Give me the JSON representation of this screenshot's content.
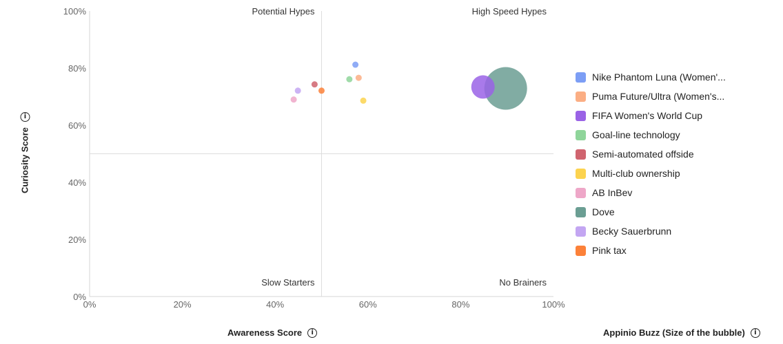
{
  "chart_data": {
    "type": "scatter",
    "xlabel": "Awareness Score",
    "ylabel": "Curiosity Score",
    "size_label": "Appinio Buzz (Size of the bubble)",
    "xlim": [
      0,
      100
    ],
    "ylim": [
      0,
      100
    ],
    "x_ticks": [
      "0%",
      "20%",
      "40%",
      "60%",
      "80%",
      "100%"
    ],
    "y_ticks": [
      "0%",
      "20%",
      "40%",
      "60%",
      "80%",
      "100%"
    ],
    "quadrant_divider": {
      "x": 50,
      "y": 50
    },
    "quadrants": {
      "top_left": "Potential Hypes",
      "top_right": "High Speed Hypes",
      "bottom_left": "Slow Starters",
      "bottom_right": "No Brainers"
    },
    "legend_position": "right",
    "series": [
      {
        "name": "Nike Phantom Luna (Women'...",
        "color": "#7c9ef5",
        "x": 57.3,
        "y": 81.2,
        "size": 1
      },
      {
        "name": "Puma Future/Ultra (Women's...",
        "color": "#fbae84",
        "x": 58.0,
        "y": 76.6,
        "size": 1
      },
      {
        "name": "FIFA Women's World Cup",
        "color": "#9a63e6",
        "x": 84.8,
        "y": 73.4,
        "size": 15
      },
      {
        "name": "Goal-line technology",
        "color": "#8fd59a",
        "x": 56.0,
        "y": 76.1,
        "size": 1
      },
      {
        "name": "Semi-automated offside",
        "color": "#d0646f",
        "x": 48.5,
        "y": 74.3,
        "size": 0.8
      },
      {
        "name": "Multi-club ownership",
        "color": "#fcd34f",
        "x": 59.0,
        "y": 68.6,
        "size": 1
      },
      {
        "name": "AB InBev",
        "color": "#eea7c8",
        "x": 44.0,
        "y": 69.0,
        "size": 0.6
      },
      {
        "name": "Dove",
        "color": "#6b9e93",
        "x": 89.7,
        "y": 72.9,
        "size": 50
      },
      {
        "name": "Becky Sauerbrunn",
        "color": "#c3a6f2",
        "x": 44.9,
        "y": 72.1,
        "size": 0.6
      },
      {
        "name": "Pink tax",
        "color": "#fc8139",
        "x": 50.0,
        "y": 72.1,
        "size": 1
      }
    ]
  }
}
